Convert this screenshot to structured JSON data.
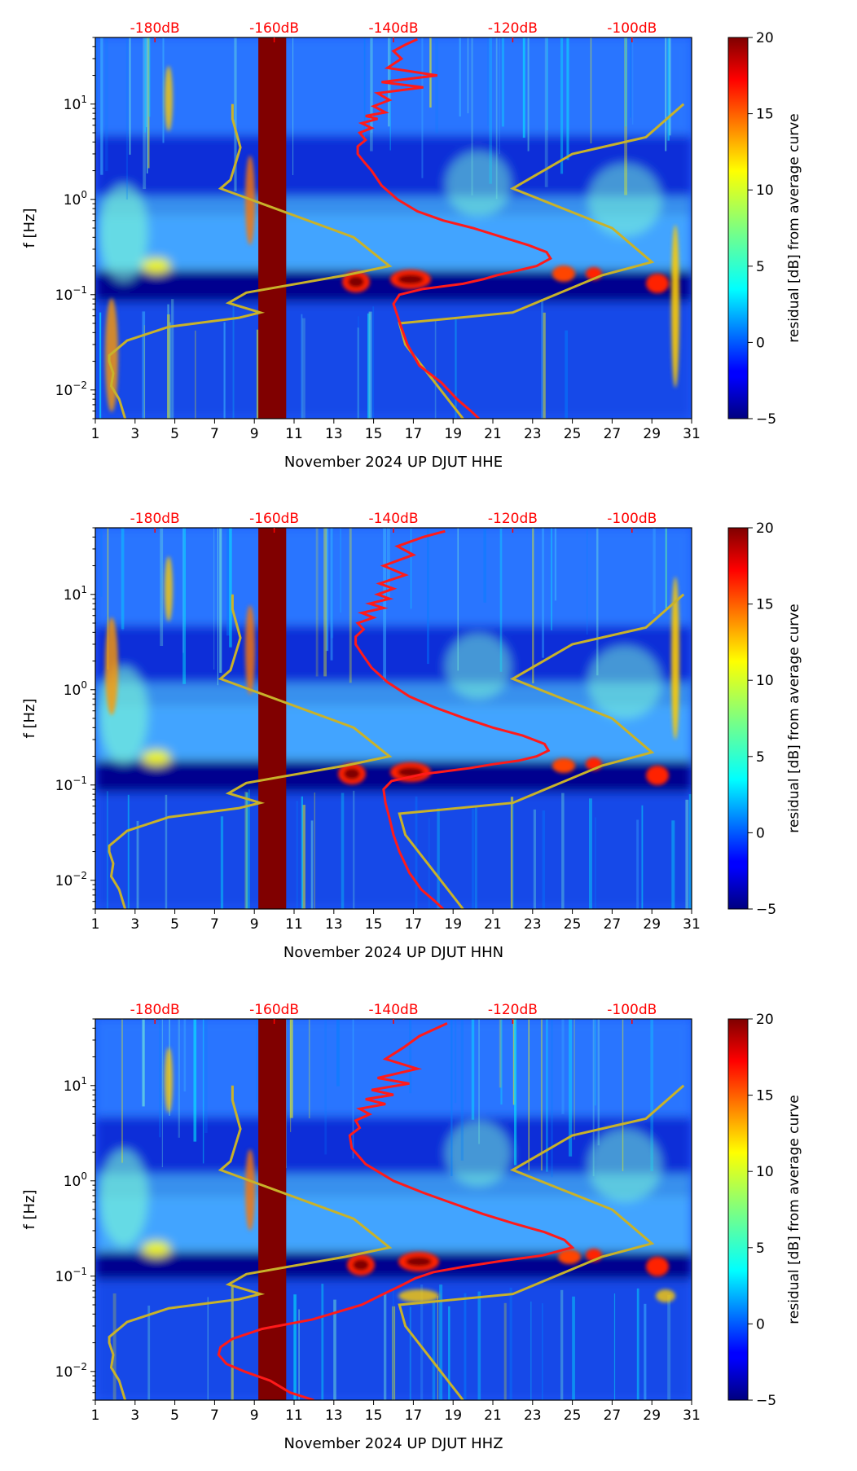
{
  "chart_data": [
    {
      "type": "heatmap",
      "title": "",
      "xlabel": "November 2024 UP DJUT  HHE",
      "ylabel": "f [Hz]",
      "xlim": [
        1,
        31
      ],
      "x_ticks": [
        1,
        3,
        5,
        7,
        9,
        11,
        13,
        15,
        17,
        19,
        21,
        23,
        25,
        27,
        29,
        31
      ],
      "x_tick_labels": [
        "1",
        "3",
        "5",
        "7",
        "9",
        "11",
        "13",
        "15",
        "17",
        "19",
        "21",
        "23",
        "25",
        "27",
        "29",
        "31"
      ],
      "ylim": [
        0.005,
        50
      ],
      "yscale": "log",
      "y_tick_labels": [
        {
          "base": "10",
          "exp": "−2",
          "value": 0.01
        },
        {
          "base": "10",
          "exp": "−1",
          "value": 0.1
        },
        {
          "base": "10",
          "exp": "0",
          "value": 1
        },
        {
          "base": "10",
          "exp": "1",
          "value": 10
        }
      ],
      "top_axis_labels": [
        "-180dB",
        "-160dB",
        "-140dB",
        "-120dB",
        "-100dB"
      ],
      "top_axis_positions": [
        4.0,
        10.0,
        16.0,
        22.0,
        28.0
      ],
      "gap_days": [
        9.2,
        10.6
      ],
      "colorbar": {
        "label": "residual [dB] from average curve",
        "min": -5,
        "max": 20,
        "ticks": [
          "−5",
          "0",
          "5",
          "10",
          "15",
          "20"
        ],
        "colormap": "jet"
      },
      "series": [
        {
          "name": "average PSD curve",
          "color": "#ff1a1a",
          "x": [
            20.3,
            19.9,
            19.2,
            18.4,
            17.3,
            16.7,
            16.4,
            16.2,
            16.0,
            16.3,
            17.5,
            19.5,
            20.5,
            21.2,
            22.3,
            23.2,
            23.9,
            23.7,
            22.8,
            21.5,
            20.0,
            18.5,
            17.2,
            16.2,
            15.4,
            14.9,
            14.5,
            14.2,
            14.2,
            14.6,
            14.3,
            14.9,
            14.4,
            15.2,
            14.6,
            15.6,
            15.0,
            15.8,
            15.2,
            17.5,
            15.4,
            18.2,
            15.7,
            16.4,
            16.0,
            16.6,
            17.2
          ],
          "y": [
            0.005,
            0.006,
            0.008,
            0.012,
            0.018,
            0.03,
            0.045,
            0.06,
            0.08,
            0.1,
            0.115,
            0.13,
            0.145,
            0.16,
            0.18,
            0.2,
            0.24,
            0.28,
            0.33,
            0.4,
            0.5,
            0.6,
            0.75,
            1.0,
            1.4,
            2.0,
            2.5,
            3.0,
            3.6,
            4.2,
            5,
            5.6,
            6.3,
            7,
            7.5,
            8.2,
            9.5,
            11,
            13,
            15,
            17,
            20,
            24,
            30,
            36,
            42,
            48
          ]
        },
        {
          "name": "noise model curve",
          "color": "#c8b22a",
          "x": [
            2.5,
            2.2,
            1.8,
            1.9,
            1.7,
            1.7,
            2.6,
            4.7,
            8.2,
            9.3,
            7.7,
            8.6,
            13.6,
            15.8,
            14.0,
            7.3,
            7.8,
            8.3,
            7.9,
            7.9
          ],
          "y": [
            0.005,
            0.008,
            0.011,
            0.015,
            0.02,
            0.023,
            0.033,
            0.046,
            0.057,
            0.065,
            0.082,
            0.105,
            0.16,
            0.2,
            0.4,
            1.3,
            1.6,
            3.5,
            7.0,
            10.0
          ]
        },
        {
          "name": "noise model curve 2",
          "color": "#c8b22a",
          "x": [
            19.5,
            16.6,
            16.3,
            22.0,
            26.5,
            29.0,
            27.0,
            22.0,
            25.0,
            28.7,
            30.6
          ],
          "y": [
            0.005,
            0.03,
            0.05,
            0.065,
            0.16,
            0.22,
            0.5,
            1.3,
            3.0,
            4.5,
            10.0
          ]
        }
      ]
    },
    {
      "type": "heatmap",
      "title": "",
      "xlabel": "November 2024 UP DJUT  HHN",
      "ylabel": "f [Hz]",
      "xlim": [
        1,
        31
      ],
      "x_ticks": [
        1,
        3,
        5,
        7,
        9,
        11,
        13,
        15,
        17,
        19,
        21,
        23,
        25,
        27,
        29,
        31
      ],
      "x_tick_labels": [
        "1",
        "3",
        "5",
        "7",
        "9",
        "11",
        "13",
        "15",
        "17",
        "19",
        "21",
        "23",
        "25",
        "27",
        "29",
        "31"
      ],
      "ylim": [
        0.005,
        50
      ],
      "yscale": "log",
      "y_tick_labels": [
        {
          "base": "10",
          "exp": "−2",
          "value": 0.01
        },
        {
          "base": "10",
          "exp": "−1",
          "value": 0.1
        },
        {
          "base": "10",
          "exp": "0",
          "value": 1
        },
        {
          "base": "10",
          "exp": "1",
          "value": 10
        }
      ],
      "top_axis_labels": [
        "-180dB",
        "-160dB",
        "-140dB",
        "-120dB",
        "-100dB"
      ],
      "top_axis_positions": [
        4.0,
        10.0,
        16.0,
        22.0,
        28.0
      ],
      "gap_days": [
        9.2,
        10.6
      ],
      "colorbar": {
        "label": "residual [dB] from average curve",
        "min": -5,
        "max": 20,
        "ticks": [
          "−5",
          "0",
          "5",
          "10",
          "15",
          "20"
        ],
        "colormap": "jet"
      },
      "series": [
        {
          "name": "average PSD curve",
          "color": "#ff1a1a",
          "x": [
            18.5,
            18.1,
            17.4,
            16.8,
            16.3,
            16.0,
            15.8,
            15.6,
            15.5,
            15.9,
            17.5,
            19.8,
            21.0,
            22.3,
            23.2,
            23.8,
            23.6,
            22.5,
            21.0,
            19.6,
            18.1,
            16.8,
            15.7,
            14.9,
            14.4,
            14.1,
            14.1,
            14.5,
            14.2,
            15.0,
            14.4,
            15.5,
            14.8,
            15.8,
            15.2,
            16.0,
            15.3,
            16.6,
            15.5,
            17.0,
            16.2,
            17.5,
            18.6
          ],
          "y": [
            0.005,
            0.006,
            0.008,
            0.012,
            0.02,
            0.03,
            0.045,
            0.065,
            0.09,
            0.11,
            0.13,
            0.15,
            0.165,
            0.18,
            0.2,
            0.23,
            0.27,
            0.33,
            0.4,
            0.5,
            0.65,
            0.85,
            1.2,
            1.7,
            2.4,
            3.0,
            3.6,
            4.3,
            5,
            5.7,
            6.4,
            7.2,
            8,
            9,
            10,
            11.5,
            13,
            16,
            20,
            26,
            32,
            40,
            46
          ]
        },
        {
          "name": "noise model curve",
          "color": "#c8b22a",
          "x": [
            2.5,
            2.2,
            1.8,
            1.9,
            1.7,
            1.7,
            2.6,
            4.7,
            8.2,
            9.3,
            7.7,
            8.6,
            13.6,
            15.8,
            14.0,
            7.3,
            7.8,
            8.3,
            7.9,
            7.9
          ],
          "y": [
            0.005,
            0.008,
            0.011,
            0.015,
            0.02,
            0.023,
            0.033,
            0.046,
            0.057,
            0.065,
            0.082,
            0.105,
            0.16,
            0.2,
            0.4,
            1.3,
            1.6,
            3.5,
            7.0,
            10.0
          ]
        },
        {
          "name": "noise model curve 2",
          "color": "#c8b22a",
          "x": [
            19.5,
            16.6,
            16.3,
            22.0,
            26.5,
            29.0,
            27.0,
            22.0,
            25.0,
            28.7,
            30.6
          ],
          "y": [
            0.005,
            0.03,
            0.05,
            0.065,
            0.16,
            0.22,
            0.5,
            1.3,
            3.0,
            4.5,
            10.0
          ]
        }
      ]
    },
    {
      "type": "heatmap",
      "title": "",
      "xlabel": "November 2024 UP DJUT  HHZ",
      "ylabel": "f [Hz]",
      "xlim": [
        1,
        31
      ],
      "x_ticks": [
        1,
        3,
        5,
        7,
        9,
        11,
        13,
        15,
        17,
        19,
        21,
        23,
        25,
        27,
        29,
        31
      ],
      "x_tick_labels": [
        "1",
        "3",
        "5",
        "7",
        "9",
        "11",
        "13",
        "15",
        "17",
        "19",
        "21",
        "23",
        "25",
        "27",
        "29",
        "31"
      ],
      "ylim": [
        0.005,
        50
      ],
      "yscale": "log",
      "y_tick_labels": [
        {
          "base": "10",
          "exp": "−2",
          "value": 0.01
        },
        {
          "base": "10",
          "exp": "−1",
          "value": 0.1
        },
        {
          "base": "10",
          "exp": "0",
          "value": 1
        },
        {
          "base": "10",
          "exp": "1",
          "value": 10
        }
      ],
      "top_axis_labels": [
        "-180dB",
        "-160dB",
        "-140dB",
        "-120dB",
        "-100dB"
      ],
      "top_axis_positions": [
        4.0,
        10.0,
        16.0,
        22.0,
        28.0
      ],
      "gap_days": [
        9.2,
        10.6
      ],
      "colorbar": {
        "label": "residual [dB] from average curve",
        "min": -5,
        "max": 20,
        "ticks": [
          "−5",
          "0",
          "5",
          "10",
          "15",
          "20"
        ],
        "colormap": "jet"
      },
      "series": [
        {
          "name": "average PSD curve",
          "color": "#ff1a1a",
          "x": [
            12.0,
            10.8,
            9.8,
            8.5,
            7.6,
            7.2,
            7.3,
            7.9,
            9.4,
            11.9,
            14.4,
            15.5,
            16.4,
            17.1,
            18.0,
            19.5,
            21.5,
            23.5,
            25.0,
            24.6,
            23.6,
            22.0,
            20.5,
            19.0,
            17.5,
            16.0,
            14.6,
            13.9,
            13.8,
            14.3,
            14.1,
            14.8,
            14.3,
            15.6,
            14.6,
            16.0,
            14.9,
            16.8,
            15.2,
            17.2,
            15.6,
            16.5,
            17.3,
            18.7
          ],
          "y": [
            0.005,
            0.006,
            0.008,
            0.01,
            0.012,
            0.015,
            0.018,
            0.022,
            0.028,
            0.035,
            0.05,
            0.065,
            0.08,
            0.095,
            0.11,
            0.125,
            0.145,
            0.165,
            0.2,
            0.24,
            0.29,
            0.36,
            0.45,
            0.58,
            0.75,
            1.0,
            1.5,
            2.2,
            3.0,
            3.6,
            4.3,
            5,
            5.7,
            6.4,
            7.2,
            8,
            9,
            10.5,
            12,
            15,
            19,
            25,
            33,
            45
          ]
        },
        {
          "name": "noise model curve",
          "color": "#c8b22a",
          "x": [
            2.5,
            2.2,
            1.8,
            1.9,
            1.7,
            1.7,
            2.6,
            4.7,
            8.2,
            9.3,
            7.7,
            8.6,
            13.6,
            15.8,
            14.0,
            7.3,
            7.8,
            8.3,
            7.9,
            7.9
          ],
          "y": [
            0.005,
            0.008,
            0.011,
            0.015,
            0.02,
            0.023,
            0.033,
            0.046,
            0.057,
            0.065,
            0.082,
            0.105,
            0.16,
            0.2,
            0.4,
            1.3,
            1.6,
            3.5,
            7.0,
            10.0
          ]
        },
        {
          "name": "noise model curve 2",
          "color": "#c8b22a",
          "x": [
            19.5,
            16.6,
            16.3,
            22.0,
            26.5,
            29.0,
            27.0,
            22.0,
            25.0,
            28.7,
            30.6
          ],
          "y": [
            0.005,
            0.03,
            0.05,
            0.065,
            0.16,
            0.22,
            0.5,
            1.3,
            3.0,
            4.5,
            10.0
          ]
        }
      ]
    }
  ]
}
